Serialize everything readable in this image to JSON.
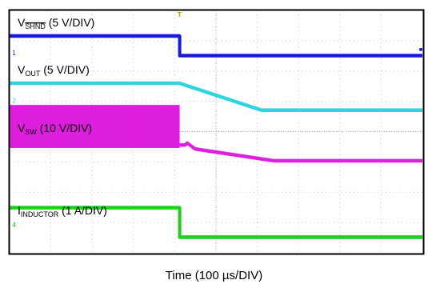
{
  "chart_data": {
    "type": "line",
    "xlabel": "Time (100 µs/DIV)",
    "x_divisions": 10,
    "y_divisions": 8,
    "grid": true,
    "trigger_marker": "T",
    "series": [
      {
        "label_main": "V",
        "label_sub": "SHND",
        "label_sub_overline": true,
        "label_scale": "(5 V/DIV)",
        "channel": "1",
        "color": "#1a1ad6",
        "points": [
          [
            0,
            7.15
          ],
          [
            4.12,
            7.15
          ],
          [
            4.12,
            6.5
          ],
          [
            10,
            6.5
          ]
        ]
      },
      {
        "label_main": "V",
        "label_sub": "OUT",
        "label_sub_overline": false,
        "label_scale": "(5 V/DIV)",
        "channel": "2",
        "color": "#2ed4e0",
        "points": [
          [
            0,
            5.59
          ],
          [
            4.12,
            5.59
          ],
          [
            6.1,
            4.7
          ],
          [
            10,
            4.7
          ]
        ]
      },
      {
        "label_main": "V",
        "label_sub": "SW",
        "label_sub_overline": false,
        "label_scale": "(10 V/DIV)",
        "channel": "3",
        "color": "#e020e0",
        "burst": [
          0,
          4.12,
          3.46,
          4.88
        ],
        "points": [
          [
            4.12,
            3.55
          ],
          [
            4.25,
            3.55
          ],
          [
            4.3,
            3.62
          ],
          [
            4.5,
            3.42
          ],
          [
            6.4,
            3.03
          ],
          [
            10,
            3.03
          ]
        ]
      },
      {
        "label_main": "I",
        "label_sub": "INDUCTOR",
        "label_sub_overline": false,
        "label_scale": "(1 A/DIV)",
        "channel": "4",
        "color": "#22cc22",
        "points": [
          [
            0,
            1.48
          ],
          [
            4.12,
            1.48
          ],
          [
            4.12,
            0.51
          ],
          [
            10,
            0.51
          ]
        ]
      }
    ]
  }
}
